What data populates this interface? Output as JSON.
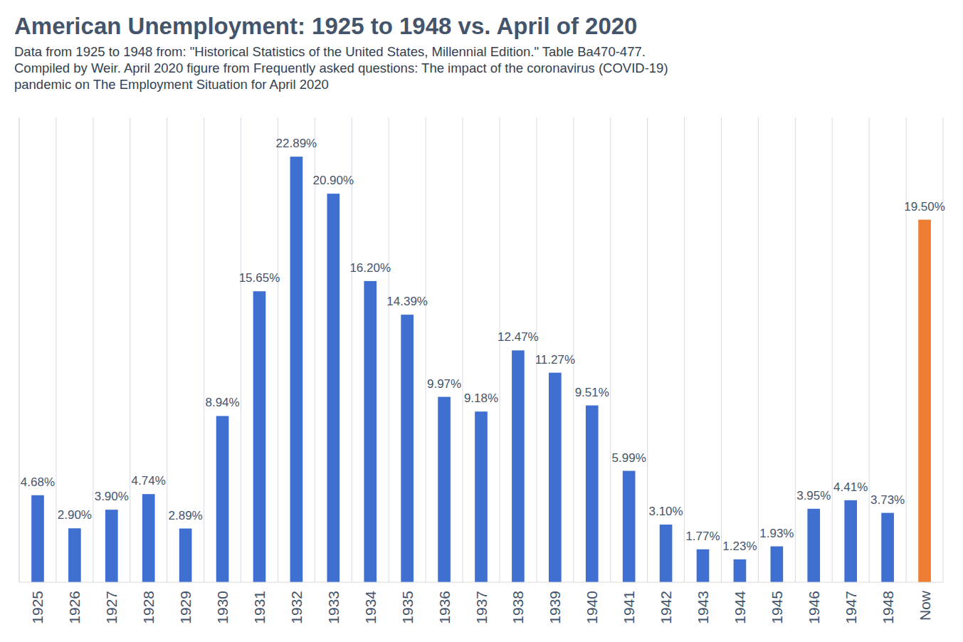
{
  "chart_data": {
    "type": "bar",
    "title": "American Unemployment: 1925 to 1948 vs. April of 2020",
    "subtitle": [
      "Data from 1925 to 1948 from: \"Historical Statistics of the United States, Millennial Edition.\" Table Ba470-477.",
      "Compiled by Weir. April 2020 figure from Frequently asked questions: The impact of the coronavirus (COVID-19)",
      "pandemic on The Employment Situation for April 2020"
    ],
    "categories": [
      "1925",
      "1926",
      "1927",
      "1928",
      "1929",
      "1930",
      "1931",
      "1932",
      "1933",
      "1934",
      "1935",
      "1936",
      "1937",
      "1938",
      "1939",
      "1940",
      "1941",
      "1942",
      "1943",
      "1944",
      "1945",
      "1946",
      "1947",
      "1948",
      "Now"
    ],
    "values": [
      4.68,
      2.9,
      3.9,
      4.74,
      2.89,
      8.94,
      15.65,
      22.89,
      20.9,
      16.2,
      14.39,
      9.97,
      9.18,
      12.47,
      11.27,
      9.51,
      5.99,
      3.1,
      1.77,
      1.23,
      1.93,
      3.95,
      4.41,
      3.73,
      19.5
    ],
    "value_labels": [
      "4.68%",
      "2.90%",
      "3.90%",
      "4.74%",
      "2.89%",
      "8.94%",
      "15.65%",
      "22.89%",
      "20.90%",
      "16.20%",
      "14.39%",
      "9.97%",
      "9.18%",
      "12.47%",
      "11.27%",
      "9.51%",
      "5.99%",
      "3.10%",
      "1.77%",
      "1.23%",
      "1.93%",
      "3.95%",
      "4.41%",
      "3.73%",
      "19.50%"
    ],
    "colors": [
      "#3f6fd0",
      "#3f6fd0",
      "#3f6fd0",
      "#3f6fd0",
      "#3f6fd0",
      "#3f6fd0",
      "#3f6fd0",
      "#3f6fd0",
      "#3f6fd0",
      "#3f6fd0",
      "#3f6fd0",
      "#3f6fd0",
      "#3f6fd0",
      "#3f6fd0",
      "#3f6fd0",
      "#3f6fd0",
      "#3f6fd0",
      "#3f6fd0",
      "#3f6fd0",
      "#3f6fd0",
      "#3f6fd0",
      "#3f6fd0",
      "#3f6fd0",
      "#3f6fd0",
      "#ed7d31"
    ],
    "ylim": [
      0,
      25
    ],
    "grid": true,
    "data_labels": true,
    "tick_labels": "x"
  }
}
